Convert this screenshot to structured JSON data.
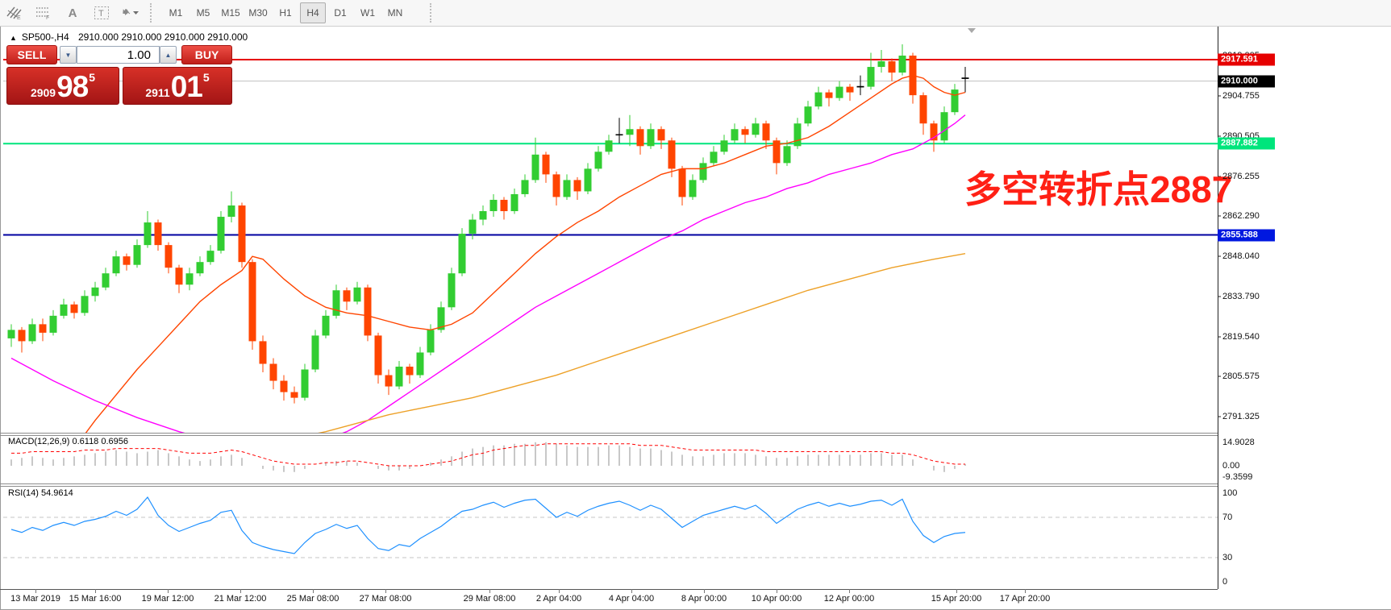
{
  "toolbar": {
    "icons": [
      {
        "name": "hatch-lines-e-icon",
        "letter": "E"
      },
      {
        "name": "grid-f-icon",
        "letter": "F"
      },
      {
        "name": "letter-a-icon",
        "letter": "A"
      },
      {
        "name": "text-box-icon",
        "letter": "T"
      },
      {
        "name": "arrows-dropdown-icon",
        "letter": ""
      }
    ],
    "timeframes": [
      "M1",
      "M5",
      "M15",
      "M30",
      "H1",
      "H4",
      "D1",
      "W1",
      "MN"
    ],
    "active_timeframe": "H4"
  },
  "chart": {
    "collapse_arrow": "▲",
    "title": "SP500-,H4",
    "quotes": "2910.000 2910.000 2910.000 2910.000"
  },
  "trade_panel": {
    "sell_label": "SELL",
    "buy_label": "BUY",
    "volume": "1.00",
    "sell_price": {
      "prefix": "2909",
      "big": "98",
      "sup": "5"
    },
    "buy_price": {
      "prefix": "2911",
      "big": "01",
      "sup": "5"
    }
  },
  "annotation": {
    "text": "多空转折点2887",
    "color": "#ff2015"
  },
  "price_axis": {
    "ticks": [
      "2919.005",
      "2904.755",
      "2890.505",
      "2876.255",
      "2862.290",
      "2848.040",
      "2833.790",
      "2819.540",
      "2805.575",
      "2791.325"
    ],
    "badges": [
      {
        "text": "2917.591",
        "price": 2917.591,
        "bg": "#e60000"
      },
      {
        "text": "2910.000",
        "price": 2910.0,
        "bg": "#000000"
      },
      {
        "text": "2887.882",
        "price": 2887.882,
        "bg": "#00e57c"
      },
      {
        "text": "2855.588",
        "price": 2855.588,
        "bg": "#0018e0"
      }
    ]
  },
  "hlines": [
    {
      "price": 2917.591,
      "color": "#e60000",
      "width": 2
    },
    {
      "price": 2910.0,
      "color": "#c0c0c0",
      "width": 1
    },
    {
      "price": 2887.882,
      "color": "#00e57c",
      "width": 2
    },
    {
      "price": 2855.588,
      "color": "#0000a0",
      "width": 2
    }
  ],
  "time_axis": [
    "13 Mar 2019",
    "15 Mar 16:00",
    "19 Mar 12:00",
    "21 Mar 12:00",
    "25 Mar 08:00",
    "27 Mar 08:00",
    "29 Mar 08:00",
    "2 Apr 04:00",
    "4 Apr 04:00",
    "8 Apr 00:00",
    "10 Apr 00:00",
    "12 Apr 00:00",
    "15 Apr 20:00",
    "17 Apr 20:00"
  ],
  "indicators": {
    "macd": {
      "label": "MACD(12,26,9) 0.6118 0.6956",
      "axis": [
        "14.9028",
        "0.00",
        "-9.3599"
      ]
    },
    "rsi": {
      "label": "RSI(14) 54.9614",
      "axis": [
        "100",
        "70",
        "30",
        "0"
      ],
      "levels": [
        70,
        30
      ]
    }
  },
  "chart_data": {
    "type": "candlestick",
    "symbol": "SP500-",
    "timeframe": "H4",
    "title": "SP500-,H4",
    "ylim": [
      2787,
      2930
    ],
    "colors": {
      "up": "#32cd32",
      "down": "#ff4500",
      "doji": "#000000"
    },
    "doji_indices": [
      58,
      81,
      91
    ],
    "candles": [
      [
        2819,
        2824,
        2816,
        2822
      ],
      [
        2822,
        2823,
        2814,
        2818
      ],
      [
        2818,
        2826,
        2817,
        2824
      ],
      [
        2824,
        2826,
        2818,
        2821
      ],
      [
        2821,
        2829,
        2820,
        2827
      ],
      [
        2827,
        2833,
        2826,
        2831
      ],
      [
        2831,
        2832,
        2826,
        2828
      ],
      [
        2828,
        2836,
        2827,
        2834
      ],
      [
        2834,
        2839,
        2832,
        2837
      ],
      [
        2837,
        2844,
        2836,
        2842
      ],
      [
        2842,
        2850,
        2841,
        2848
      ],
      [
        2848,
        2849,
        2843,
        2845
      ],
      [
        2845,
        2854,
        2844,
        2852
      ],
      [
        2852,
        2864,
        2851,
        2860
      ],
      [
        2860,
        2861,
        2850,
        2852
      ],
      [
        2852,
        2853,
        2842,
        2844
      ],
      [
        2844,
        2845,
        2835,
        2838
      ],
      [
        2838,
        2844,
        2836,
        2842
      ],
      [
        2842,
        2848,
        2841,
        2846
      ],
      [
        2846,
        2852,
        2845,
        2850
      ],
      [
        2850,
        2864,
        2849,
        2862
      ],
      [
        2862,
        2871,
        2860,
        2866
      ],
      [
        2866,
        2867,
        2844,
        2846
      ],
      [
        2846,
        2847,
        2815,
        2818
      ],
      [
        2818,
        2820,
        2807,
        2810
      ],
      [
        2810,
        2812,
        2801,
        2804
      ],
      [
        2804,
        2806,
        2797,
        2800
      ],
      [
        2800,
        2802,
        2796,
        2798
      ],
      [
        2798,
        2810,
        2797,
        2808
      ],
      [
        2808,
        2822,
        2807,
        2820
      ],
      [
        2820,
        2829,
        2819,
        2827
      ],
      [
        2827,
        2838,
        2826,
        2836
      ],
      [
        2836,
        2837,
        2829,
        2832
      ],
      [
        2832,
        2839,
        2831,
        2837
      ],
      [
        2837,
        2838,
        2818,
        2820
      ],
      [
        2820,
        2821,
        2803,
        2806
      ],
      [
        2806,
        2808,
        2799,
        2802
      ],
      [
        2802,
        2811,
        2801,
        2809
      ],
      [
        2809,
        2810,
        2803,
        2806
      ],
      [
        2806,
        2816,
        2805,
        2814
      ],
      [
        2814,
        2824,
        2813,
        2822
      ],
      [
        2822,
        2832,
        2821,
        2830
      ],
      [
        2830,
        2844,
        2829,
        2842
      ],
      [
        2842,
        2858,
        2841,
        2856
      ],
      [
        2856,
        2863,
        2854,
        2861
      ],
      [
        2861,
        2866,
        2859,
        2864
      ],
      [
        2864,
        2870,
        2862,
        2868
      ],
      [
        2868,
        2869,
        2861,
        2864
      ],
      [
        2864,
        2872,
        2863,
        2870
      ],
      [
        2870,
        2877,
        2869,
        2875
      ],
      [
        2875,
        2890,
        2874,
        2884
      ],
      [
        2884,
        2885,
        2874,
        2877
      ],
      [
        2877,
        2878,
        2866,
        2869
      ],
      [
        2869,
        2877,
        2868,
        2875
      ],
      [
        2875,
        2876,
        2868,
        2871
      ],
      [
        2871,
        2881,
        2870,
        2879
      ],
      [
        2879,
        2887,
        2878,
        2885
      ],
      [
        2885,
        2891,
        2884,
        2889
      ],
      [
        2891,
        2897,
        2888,
        2891
      ],
      [
        2891,
        2898,
        2887,
        2893
      ],
      [
        2893,
        2894,
        2884,
        2887
      ],
      [
        2887,
        2895,
        2886,
        2893
      ],
      [
        2893,
        2894,
        2886,
        2889
      ],
      [
        2889,
        2890,
        2876,
        2879
      ],
      [
        2879,
        2880,
        2866,
        2869
      ],
      [
        2869,
        2877,
        2868,
        2875
      ],
      [
        2875,
        2883,
        2874,
        2881
      ],
      [
        2881,
        2887,
        2880,
        2885
      ],
      [
        2885,
        2891,
        2884,
        2889
      ],
      [
        2889,
        2895,
        2888,
        2893
      ],
      [
        2893,
        2894,
        2888,
        2891
      ],
      [
        2891,
        2897,
        2890,
        2895
      ],
      [
        2895,
        2896,
        2886,
        2889
      ],
      [
        2889,
        2890,
        2877,
        2881
      ],
      [
        2881,
        2889,
        2880,
        2887
      ],
      [
        2887,
        2897,
        2886,
        2895
      ],
      [
        2895,
        2903,
        2894,
        2901
      ],
      [
        2901,
        2908,
        2900,
        2906
      ],
      [
        2906,
        2907,
        2901,
        2904
      ],
      [
        2904,
        2910,
        2903,
        2908
      ],
      [
        2908,
        2909,
        2903,
        2906
      ],
      [
        2908,
        2912,
        2905,
        2908
      ],
      [
        2908,
        2920,
        2907,
        2915
      ],
      [
        2915,
        2921,
        2913,
        2917
      ],
      [
        2917,
        2918,
        2910,
        2913
      ],
      [
        2913,
        2923,
        2912,
        2919
      ],
      [
        2919,
        2920,
        2902,
        2905
      ],
      [
        2905,
        2906,
        2891,
        2895
      ],
      [
        2895,
        2896,
        2885,
        2889
      ],
      [
        2889,
        2901,
        2888,
        2899
      ],
      [
        2899,
        2909,
        2898,
        2907
      ],
      [
        2911,
        2915,
        2906,
        2911
      ]
    ],
    "moving_averages": [
      {
        "name": "fast",
        "color": "#ff4500",
        "points": [
          [
            4,
            2770
          ],
          [
            6,
            2780
          ],
          [
            8,
            2790
          ],
          [
            10,
            2799
          ],
          [
            12,
            2808
          ],
          [
            14,
            2816
          ],
          [
            16,
            2824
          ],
          [
            18,
            2832
          ],
          [
            20,
            2838
          ],
          [
            22,
            2843
          ],
          [
            23,
            2848
          ],
          [
            24,
            2847
          ],
          [
            26,
            2840
          ],
          [
            28,
            2834
          ],
          [
            30,
            2830
          ],
          [
            32,
            2828
          ],
          [
            34,
            2827
          ],
          [
            36,
            2825
          ],
          [
            38,
            2823
          ],
          [
            40,
            2822
          ],
          [
            42,
            2824
          ],
          [
            44,
            2828
          ],
          [
            46,
            2835
          ],
          [
            48,
            2842
          ],
          [
            50,
            2849
          ],
          [
            52,
            2855
          ],
          [
            54,
            2860
          ],
          [
            56,
            2864
          ],
          [
            58,
            2869
          ],
          [
            60,
            2873
          ],
          [
            62,
            2877
          ],
          [
            64,
            2879
          ],
          [
            66,
            2879
          ],
          [
            68,
            2881
          ],
          [
            70,
            2884
          ],
          [
            72,
            2887
          ],
          [
            74,
            2888
          ],
          [
            76,
            2890
          ],
          [
            78,
            2894
          ],
          [
            80,
            2899
          ],
          [
            82,
            2904
          ],
          [
            84,
            2909
          ],
          [
            85,
            2911
          ],
          [
            86,
            2912
          ],
          [
            87,
            2911
          ],
          [
            88,
            2908
          ],
          [
            89,
            2906
          ],
          [
            90,
            2905
          ],
          [
            91,
            2906
          ]
        ]
      },
      {
        "name": "medium",
        "color": "#ff00ff",
        "points": [
          [
            0,
            2812
          ],
          [
            4,
            2804
          ],
          [
            8,
            2797
          ],
          [
            12,
            2791
          ],
          [
            16,
            2786
          ],
          [
            20,
            2782
          ],
          [
            23,
            2780
          ],
          [
            26,
            2780
          ],
          [
            29,
            2782
          ],
          [
            32,
            2786
          ],
          [
            34,
            2790
          ],
          [
            36,
            2795
          ],
          [
            38,
            2800
          ],
          [
            40,
            2805
          ],
          [
            42,
            2810
          ],
          [
            44,
            2815
          ],
          [
            46,
            2820
          ],
          [
            48,
            2825
          ],
          [
            50,
            2830
          ],
          [
            52,
            2834
          ],
          [
            54,
            2838
          ],
          [
            56,
            2842
          ],
          [
            58,
            2846
          ],
          [
            60,
            2850
          ],
          [
            62,
            2854
          ],
          [
            64,
            2857
          ],
          [
            66,
            2861
          ],
          [
            68,
            2864
          ],
          [
            70,
            2867
          ],
          [
            72,
            2869
          ],
          [
            74,
            2872
          ],
          [
            76,
            2874
          ],
          [
            78,
            2877
          ],
          [
            80,
            2879
          ],
          [
            82,
            2881
          ],
          [
            84,
            2884
          ],
          [
            86,
            2886
          ],
          [
            88,
            2890
          ],
          [
            90,
            2895
          ],
          [
            91,
            2898
          ]
        ]
      },
      {
        "name": "slow",
        "color": "#eda128",
        "points": [
          [
            10,
            2770
          ],
          [
            14,
            2774
          ],
          [
            18,
            2777
          ],
          [
            22,
            2780
          ],
          [
            26,
            2783
          ],
          [
            30,
            2786
          ],
          [
            32,
            2788
          ],
          [
            34,
            2790
          ],
          [
            36,
            2792
          ],
          [
            40,
            2795
          ],
          [
            44,
            2798
          ],
          [
            48,
            2802
          ],
          [
            52,
            2806
          ],
          [
            56,
            2811
          ],
          [
            60,
            2816
          ],
          [
            64,
            2821
          ],
          [
            68,
            2826
          ],
          [
            72,
            2831
          ],
          [
            76,
            2836
          ],
          [
            80,
            2840
          ],
          [
            84,
            2844
          ],
          [
            88,
            2847
          ],
          [
            91,
            2849
          ]
        ]
      }
    ],
    "macd": {
      "histogram_color": "#c8c8c8",
      "signal_color": "#ff0000",
      "histogram": [
        4,
        5,
        6,
        5,
        4,
        5,
        6,
        7,
        8,
        9,
        10,
        9,
        8,
        9,
        10,
        8,
        6,
        4,
        3,
        4,
        6,
        7,
        5,
        0,
        -2,
        -3,
        -4,
        -4,
        -2,
        0,
        2,
        3,
        3,
        2,
        0,
        -2,
        -3,
        -3,
        -2,
        0,
        2,
        4,
        6,
        9,
        11,
        12,
        13,
        13,
        14,
        14,
        15,
        15,
        14,
        13,
        12,
        12,
        12,
        13,
        13,
        12,
        11,
        11,
        10,
        9,
        7,
        6,
        6,
        7,
        8,
        8,
        8,
        7,
        6,
        5,
        5,
        6,
        7,
        7,
        7,
        7,
        7,
        7,
        8,
        8,
        7,
        7,
        4,
        0,
        -3,
        -4,
        -2,
        1
      ],
      "signal": [
        8,
        8,
        9,
        9,
        9,
        9,
        9,
        10,
        10,
        10,
        11,
        11,
        11,
        11,
        11,
        10,
        9,
        8,
        8,
        8,
        9,
        10,
        9,
        7,
        5,
        3,
        2,
        1,
        1,
        1,
        2,
        2,
        3,
        3,
        2,
        1,
        0,
        0,
        0,
        0,
        1,
        2,
        3,
        5,
        7,
        8,
        10,
        11,
        12,
        13,
        13,
        14,
        14,
        14,
        14,
        14,
        14,
        14,
        14,
        14,
        13,
        13,
        13,
        12,
        11,
        10,
        10,
        10,
        10,
        10,
        10,
        10,
        9,
        9,
        9,
        9,
        9,
        9,
        9,
        9,
        9,
        9,
        9,
        9,
        8,
        8,
        7,
        5,
        3,
        2,
        1,
        1
      ]
    },
    "rsi": {
      "color": "#1e90ff",
      "values": [
        58,
        55,
        60,
        57,
        62,
        65,
        62,
        66,
        68,
        71,
        76,
        72,
        78,
        90,
        72,
        62,
        56,
        60,
        64,
        67,
        75,
        77,
        57,
        45,
        41,
        38,
        36,
        34,
        45,
        54,
        58,
        63,
        59,
        62,
        49,
        39,
        37,
        43,
        41,
        49,
        55,
        61,
        69,
        76,
        78,
        82,
        85,
        80,
        84,
        87,
        88,
        79,
        70,
        75,
        71,
        77,
        81,
        84,
        86,
        82,
        77,
        82,
        78,
        69,
        60,
        66,
        72,
        75,
        78,
        81,
        78,
        82,
        74,
        64,
        71,
        78,
        82,
        85,
        81,
        84,
        81,
        83,
        86,
        87,
        82,
        88,
        66,
        52,
        45,
        51,
        54,
        55
      ]
    }
  }
}
